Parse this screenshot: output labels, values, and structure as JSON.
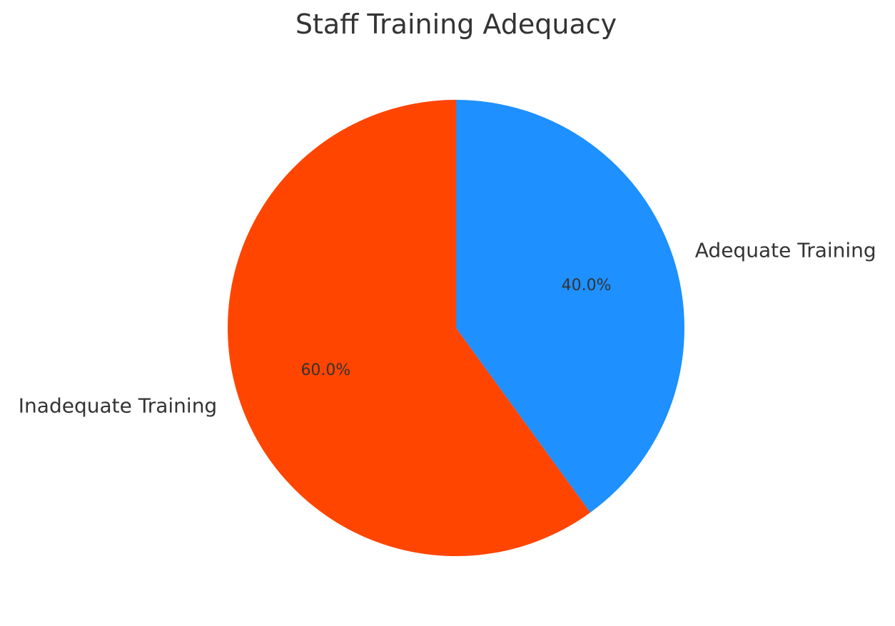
{
  "chart_data": {
    "type": "pie",
    "title": "Staff Training Adequacy",
    "start_angle_deg": 90,
    "direction": "clockwise",
    "slices": [
      {
        "label": "Adequate Training",
        "value": 40.0,
        "pct_label": "40.0%",
        "color": "#1E90FF"
      },
      {
        "label": "Inadequate Training",
        "value": 60.0,
        "pct_label": "60.0%",
        "color": "#FF4500"
      }
    ]
  }
}
